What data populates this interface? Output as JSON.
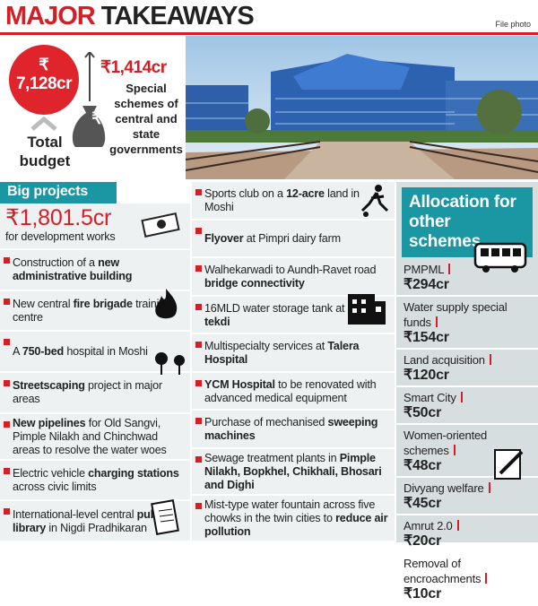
{
  "header": {
    "title_red": "MAJOR",
    "title_black": "TAKEAWAYS",
    "credit": "File photo"
  },
  "budget": {
    "total_symbol": "₹",
    "total_amount": "7,128cr",
    "total_label": "Total budget",
    "bag_symbol": "₹",
    "special_amount": "₹1,414cr",
    "special_label": "Special schemes of central and state governments"
  },
  "big_projects": {
    "title": "Big projects",
    "headline_amount": "₹1,801.5cr",
    "headline_text": "for development works",
    "items": [
      {
        "parts": [
          {
            "normal": "Construction of a "
          },
          {
            "bold": "new administrative building"
          }
        ]
      },
      {
        "parts": [
          {
            "normal": "New central "
          },
          {
            "bold": "fire brigade"
          },
          {
            "normal": " training centre"
          }
        ]
      },
      {
        "parts": [
          {
            "normal": "A "
          },
          {
            "bold": "750-bed"
          },
          {
            "normal": " hospital in Moshi"
          }
        ]
      },
      {
        "parts": [
          {
            "bold": "Streetscaping"
          },
          {
            "normal": " project in major areas"
          }
        ]
      },
      {
        "parts": [
          {
            "bold": "New pipelines"
          },
          {
            "normal": " for Old Sangvi, Pimple Nilakh and Chinchwad areas to resolve the water woes"
          }
        ]
      },
      {
        "parts": [
          {
            "normal": "Electric vehicle "
          },
          {
            "bold": "charging stations"
          },
          {
            "normal": " across civic limits"
          }
        ]
      },
      {
        "parts": [
          {
            "normal": "International-level central "
          },
          {
            "bold": "public library"
          },
          {
            "normal": " in Nigdi Pradhikaran"
          }
        ]
      }
    ]
  },
  "more_projects": {
    "items": [
      {
        "parts": [
          {
            "normal": "Sports club on a "
          },
          {
            "bold": "12-acre"
          },
          {
            "normal": " land in Moshi"
          }
        ]
      },
      {
        "parts": [
          {
            "bold": "Flyover"
          },
          {
            "normal": " at Pimpri dairy farm"
          }
        ]
      },
      {
        "parts": [
          {
            "normal": "Walhekarwadi to Aundh-Ravet road "
          },
          {
            "bold": "bridge connectivity"
          }
        ]
      },
      {
        "parts": [
          {
            "normal": "16MLD water storage tank at "
          },
          {
            "bold": "Durga tekdi"
          }
        ]
      },
      {
        "parts": [
          {
            "normal": "Multispecialty services at "
          },
          {
            "bold": "Talera Hospital"
          }
        ]
      },
      {
        "parts": [
          {
            "bold": "YCM Hospital"
          },
          {
            "normal": " to be renovated with advanced medical equipment"
          }
        ]
      },
      {
        "parts": [
          {
            "normal": "Purchase of mechanised "
          },
          {
            "bold": "sweeping machines"
          }
        ]
      },
      {
        "parts": [
          {
            "normal": "Sewage treatment plants in "
          },
          {
            "bold": "Pimple Nilakh, Bopkhel, Chikhali, Bhosari and Dighi"
          }
        ]
      },
      {
        "parts": [
          {
            "normal": "Mist-type water fountain across five chowks in the twin cities to "
          },
          {
            "bold": "reduce air pollution"
          }
        ]
      }
    ]
  },
  "allocation": {
    "title": "Allocation for other schemes",
    "items": [
      {
        "name": "PMPML",
        "amount": "₹294cr"
      },
      {
        "name": "Water supply special funds",
        "amount": "₹154cr"
      },
      {
        "name": "Land acquisition",
        "amount": "₹120cr"
      },
      {
        "name": "Smart City",
        "amount": "₹50cr"
      },
      {
        "name": "Women-oriented schemes",
        "amount": "₹48cr"
      },
      {
        "name": "Divyang welfare",
        "amount": "₹45cr"
      },
      {
        "name": "Amrut 2.0",
        "amount": "₹20cr"
      },
      {
        "name": "Removal of encroachments",
        "amount": "₹10cr"
      }
    ]
  }
}
